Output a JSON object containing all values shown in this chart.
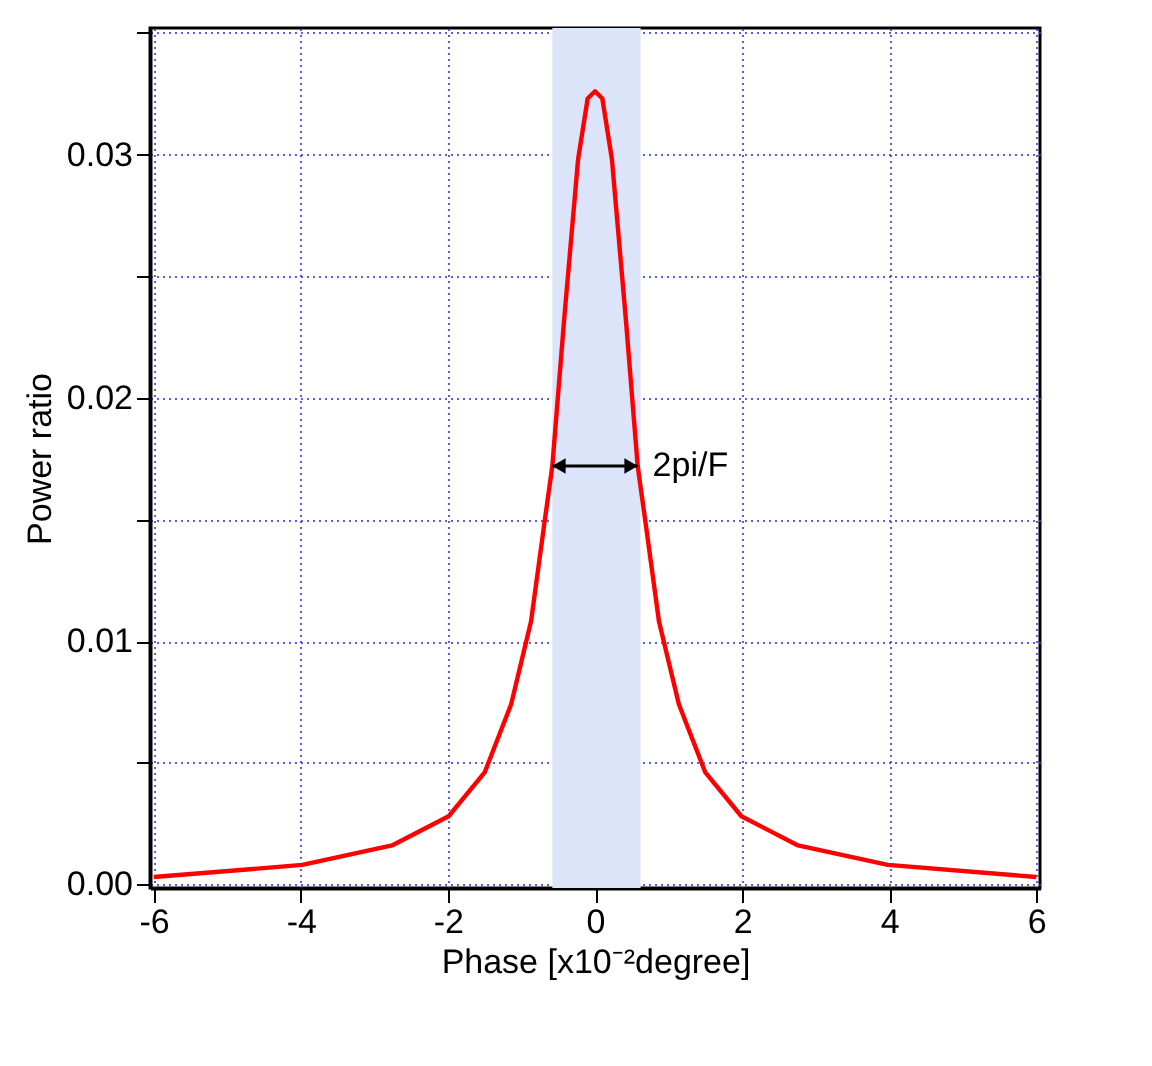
{
  "chart_data": {
    "type": "line",
    "xlabel": "Phase [x10⁻²degree]",
    "ylabel": "Power ratio",
    "x": [
      -6,
      -3.98,
      -2.76,
      -1.99,
      -1.5,
      -1.14,
      -0.87,
      -0.69,
      -0.58,
      -0.42,
      -0.23,
      -0.1,
      0,
      0.1,
      0.23,
      0.42,
      0.58,
      0.69,
      0.87,
      1.14,
      1.5,
      1.99,
      2.76,
      3.98,
      6
    ],
    "series": [
      {
        "color": "#ff0000",
        "values": [
          0.0003,
          0.0008,
          0.0016,
          0.0028,
          0.0046,
          0.0074,
          0.0108,
          0.0148,
          0.0172,
          0.0232,
          0.0298,
          0.0323,
          0.0326,
          0.0323,
          0.0298,
          0.0232,
          0.0172,
          0.0148,
          0.0108,
          0.0074,
          0.0046,
          0.0028,
          0.0016,
          0.0008,
          0.0003
        ]
      }
    ],
    "xlim": [
      -6.05,
      6.05
    ],
    "ylim": [
      -0.00015,
      0.0352
    ],
    "xticks": [
      -6,
      -4,
      -2,
      0,
      2,
      4,
      6
    ],
    "yticks": [
      {
        "value": 0,
        "label": "0.00"
      },
      {
        "value": 0.005,
        "label": null
      },
      {
        "value": 0.01,
        "label": "0.01"
      },
      {
        "value": 0.015,
        "label": null
      },
      {
        "value": 0.02,
        "label": "0.02"
      },
      {
        "value": 0.025,
        "label": null
      },
      {
        "value": 0.03,
        "label": "0.03"
      },
      {
        "value": 0.035,
        "label": null
      }
    ],
    "bands": [
      {
        "axis": "x",
        "from": -0.58,
        "to": 0.62,
        "color": "#dce4fa"
      }
    ],
    "annotations": [
      {
        "text": "2pi/F",
        "x": 0.62,
        "y": 0.0172
      }
    ],
    "grid": true,
    "marker": "none",
    "line_style": "solid"
  }
}
